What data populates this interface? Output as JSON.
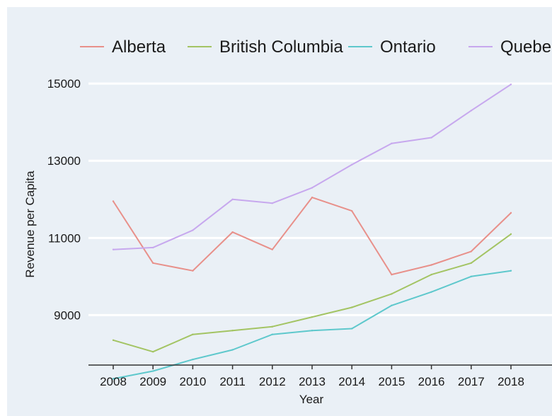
{
  "chart_data": {
    "type": "line",
    "title": "",
    "xlabel": "Year",
    "ylabel": "Revenue per Capita",
    "x": [
      2008,
      2009,
      2010,
      2011,
      2012,
      2013,
      2014,
      2015,
      2016,
      2017,
      2018
    ],
    "x_tick_labels": [
      "2008",
      "2009",
      "2010",
      "2011",
      "2012",
      "2013",
      "2014",
      "2015",
      "2016",
      "2017",
      "2018"
    ],
    "yticks": [
      9000,
      11000,
      13000,
      15000
    ],
    "y_tick_labels": [
      "9000",
      "11000",
      "13000",
      "15000"
    ],
    "ylim": [
      7100,
      15700
    ],
    "grid": "horizontal",
    "legend_position": "top",
    "series": [
      {
        "name": "Alberta",
        "color": "#e8908a",
        "values": [
          11950,
          10350,
          10150,
          11150,
          10700,
          12050,
          11700,
          10050,
          10300,
          10650,
          11650
        ]
      },
      {
        "name": "British Columbia",
        "color": "#a3c463",
        "values": [
          8350,
          8050,
          8500,
          8600,
          8700,
          8950,
          9200,
          9550,
          10050,
          10350,
          11100
        ]
      },
      {
        "name": "Ontario",
        "color": "#5ec8cc",
        "values": [
          7350,
          7550,
          7850,
          8100,
          8500,
          8600,
          8650,
          9250,
          9600,
          10000,
          10150
        ]
      },
      {
        "name": "Quebec",
        "color": "#c7a8ee",
        "values": [
          10700,
          10750,
          11200,
          12000,
          11900,
          12300,
          12900,
          13450,
          13600,
          14300,
          14980
        ]
      }
    ]
  }
}
